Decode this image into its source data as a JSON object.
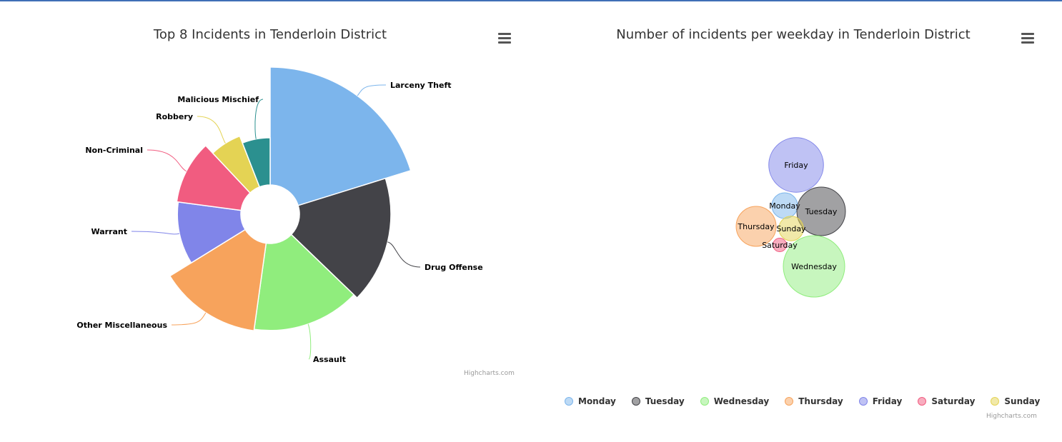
{
  "pie_chart": {
    "title": "Top 8 Incidents in Tenderloin District",
    "credits": "Highcharts.com",
    "menu_icon": "hamburger-menu-icon"
  },
  "bubble_chart": {
    "title": "Number of incidents per weekday in Tenderloin District",
    "credits": "Highcharts.com",
    "menu_icon": "hamburger-menu-icon"
  },
  "chart_data": [
    {
      "type": "pie",
      "variant": "variable-radius donut",
      "title": "Top 8 Incidents in Tenderloin District",
      "slices": [
        {
          "label": "Larceny Theft",
          "share": 0.202,
          "radius": 1.0,
          "color": "#7cb5ec"
        },
        {
          "label": "Drug Offense",
          "share": 0.17,
          "radius": 0.82,
          "color": "#434348"
        },
        {
          "label": "Assault",
          "share": 0.15,
          "radius": 0.79,
          "color": "#90ed7d"
        },
        {
          "label": "Other Miscellaneous",
          "share": 0.14,
          "radius": 0.8,
          "color": "#f7a35c"
        },
        {
          "label": "Warrant",
          "share": 0.109,
          "radius": 0.63,
          "color": "#8085e9"
        },
        {
          "label": "Non-Criminal",
          "share": 0.109,
          "radius": 0.64,
          "color": "#f15c80"
        },
        {
          "label": "Robbery",
          "share": 0.061,
          "radius": 0.57,
          "color": "#e4d354"
        },
        {
          "label": "Malicious Mischief",
          "share": 0.059,
          "radius": 0.52,
          "color": "#2b908f"
        }
      ]
    },
    {
      "type": "scatter",
      "variant": "packed bubble",
      "title": "Number of incidents per weekday in Tenderloin District",
      "legend_placement": "bottom-center",
      "series": [
        {
          "name": "Monday",
          "relative_size": 0.42,
          "color": "#7cb5ec"
        },
        {
          "name": "Tuesday",
          "relative_size": 0.79,
          "color": "#434348"
        },
        {
          "name": "Wednesday",
          "relative_size": 1.0,
          "color": "#90ed7d"
        },
        {
          "name": "Thursday",
          "relative_size": 0.65,
          "color": "#f7a35c"
        },
        {
          "name": "Friday",
          "relative_size": 0.89,
          "color": "#8085e9"
        },
        {
          "name": "Saturday",
          "relative_size": 0.22,
          "color": "#f15c80"
        },
        {
          "name": "Sunday",
          "relative_size": 0.4,
          "color": "#e4d354"
        }
      ]
    }
  ]
}
